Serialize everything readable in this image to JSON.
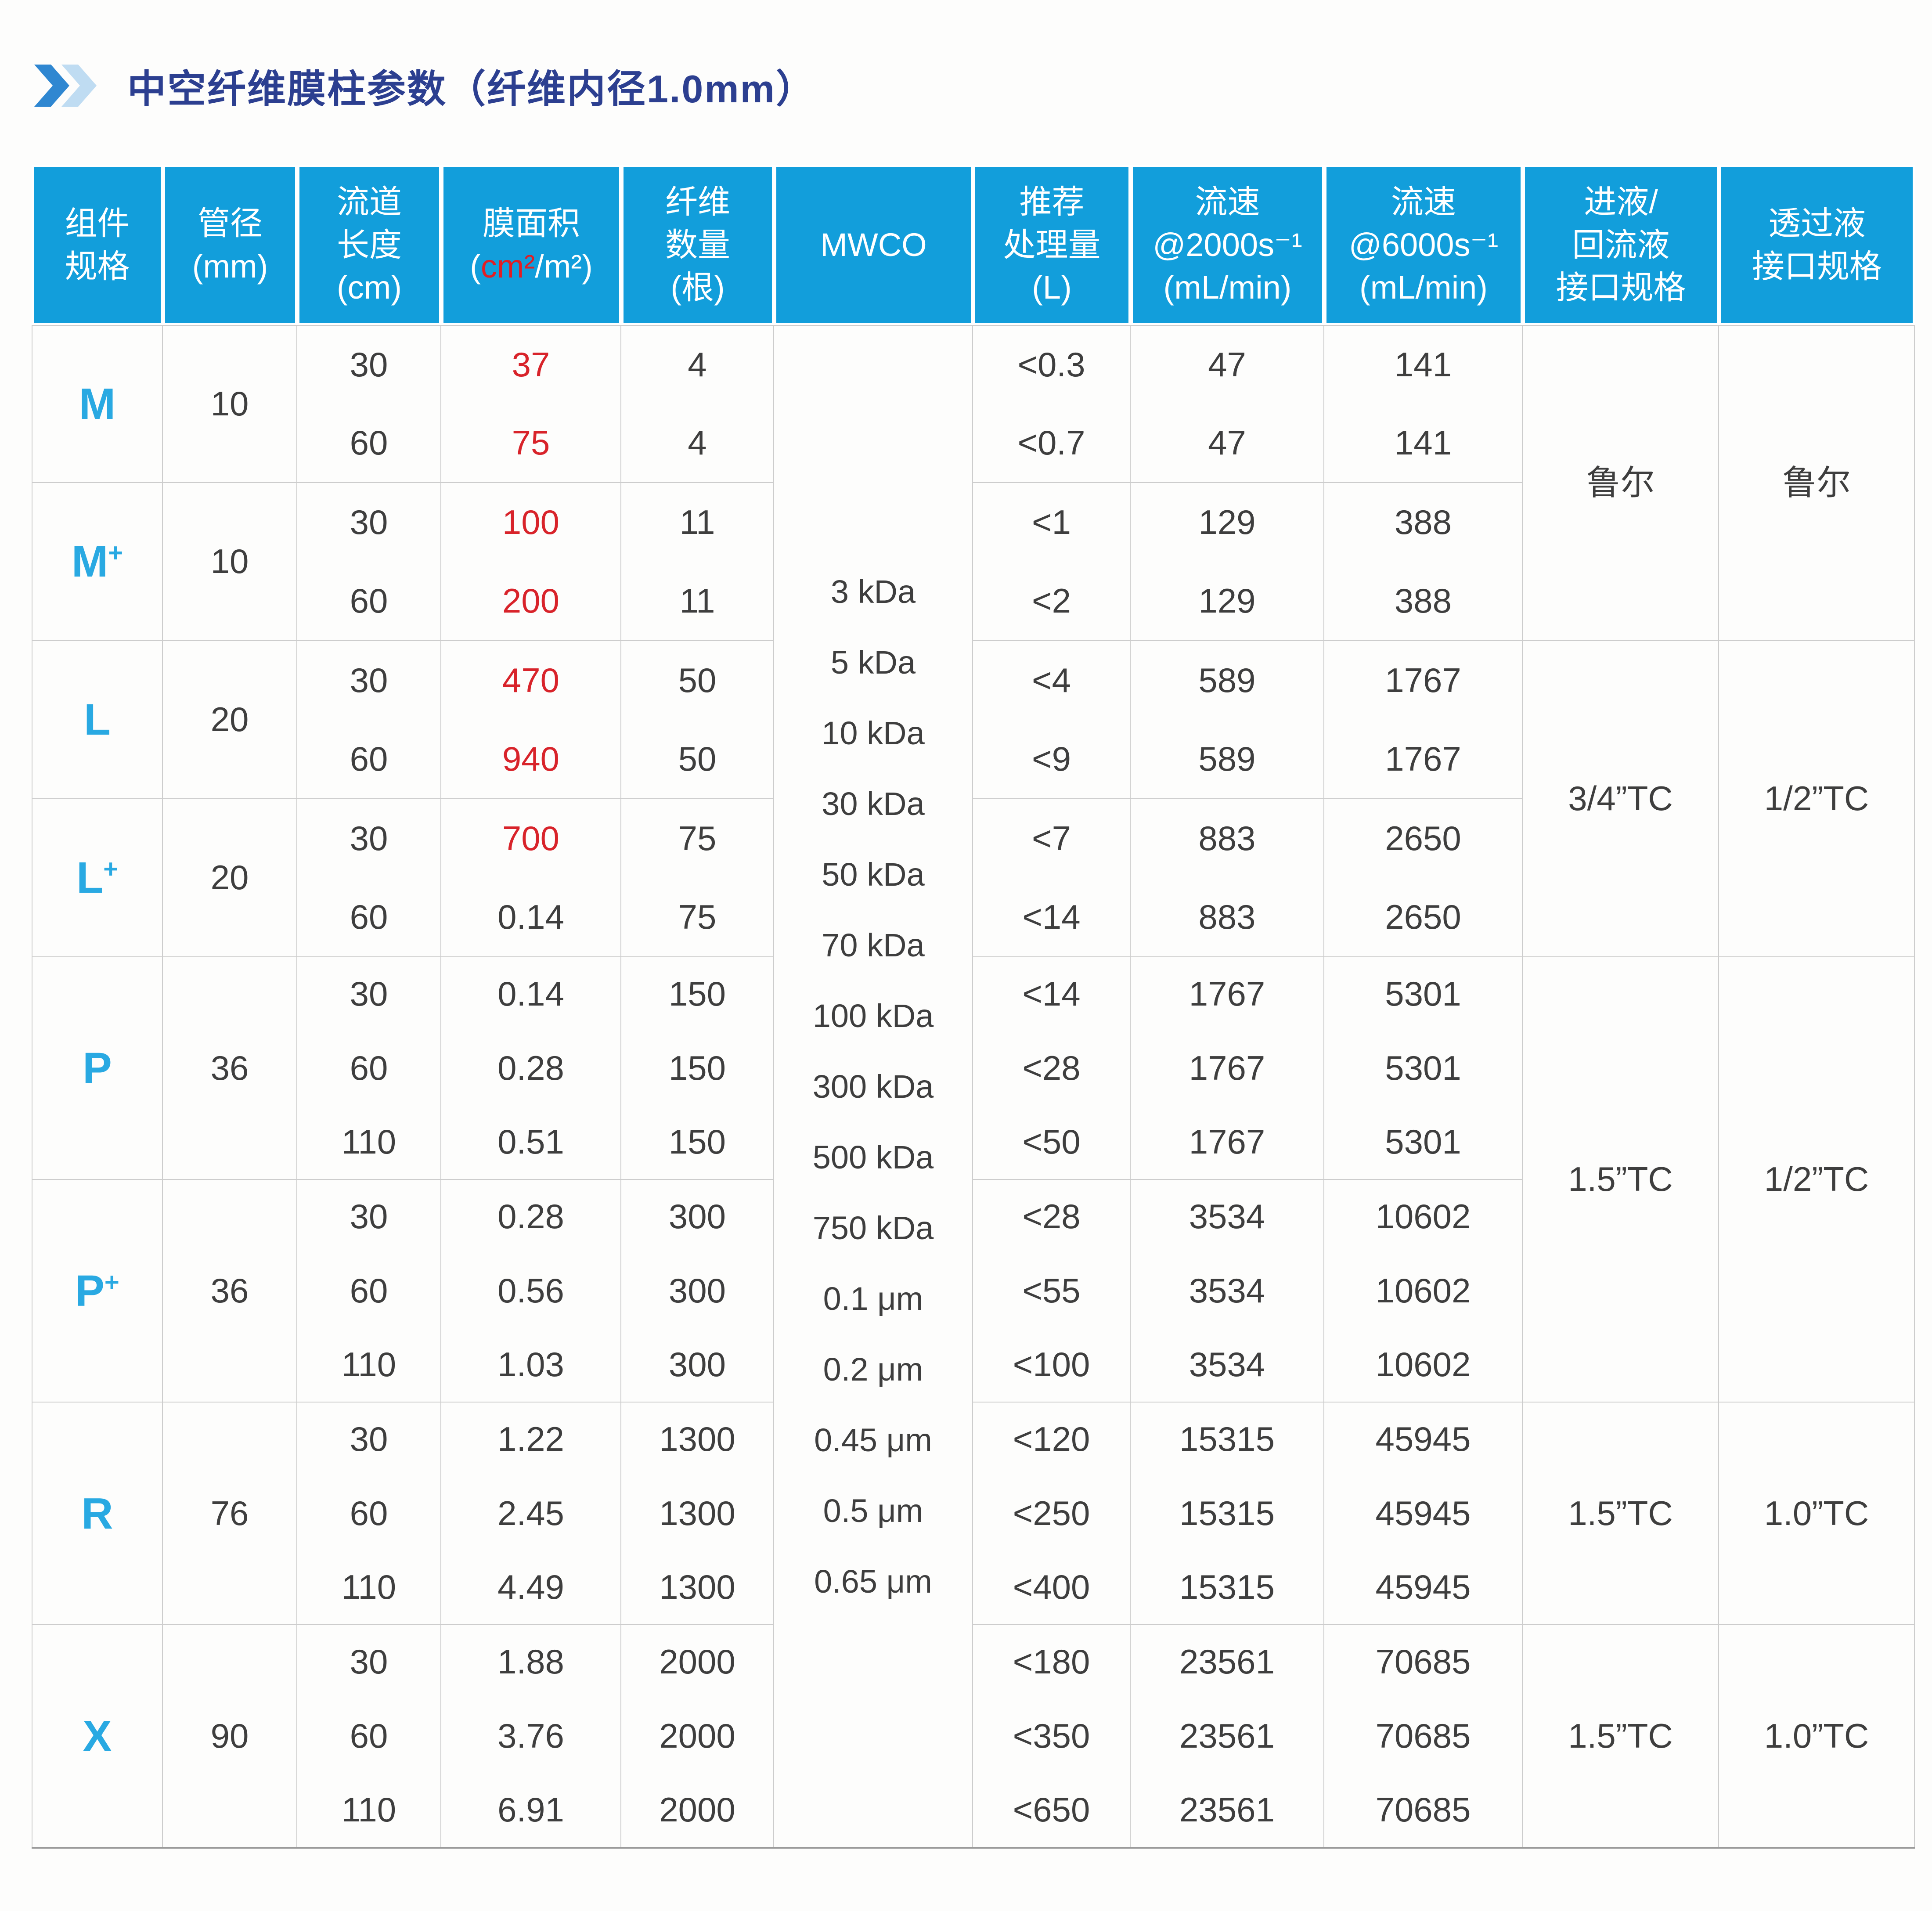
{
  "title": {
    "text": "中空纤维膜柱参数（纤维内径1.0mm）"
  },
  "icon": {
    "name": "double-chevron-right",
    "color_primary": "#2F87D1",
    "color_secondary": "#BFDCF2"
  },
  "colors": {
    "header_background": "#129EDB",
    "header_text": "#FFFFFF",
    "accent_cyan": "#29A9E2",
    "accent_red": "#D8232A",
    "title_navy": "#2C3F90",
    "body_text": "#3E3E3E",
    "grid_line": "#CDCDCD"
  },
  "table": {
    "headers": [
      {
        "lines": [
          "组件",
          "规格"
        ]
      },
      {
        "lines": [
          "管径",
          "(mm)"
        ]
      },
      {
        "lines": [
          "流道",
          "长度",
          "(cm)"
        ]
      },
      {
        "lines": [
          "膜面积"
        ],
        "unit": {
          "prefix": "(",
          "red": "cm²",
          "rest": "/m²)"
        }
      },
      {
        "lines": [
          "纤维",
          "数量",
          "(根)"
        ]
      },
      {
        "lines": [
          "MWCO"
        ]
      },
      {
        "lines": [
          "推荐",
          "处理量",
          "(L)"
        ]
      },
      {
        "lines": [
          "流速",
          "@2000s⁻¹",
          "(mL/min)"
        ]
      },
      {
        "lines": [
          "流速",
          "@6000s⁻¹",
          "(mL/min)"
        ]
      },
      {
        "lines": [
          "进液/",
          "回流液",
          "接口规格"
        ]
      },
      {
        "lines": [
          "透过液",
          "接口规格"
        ]
      }
    ],
    "mwco_list": [
      "3 kDa",
      "5 kDa",
      "10 kDa",
      "30 kDa",
      "50 kDa",
      "70 kDa",
      "100 kDa",
      "300 kDa",
      "500 kDa",
      "750 kDa",
      "0.1 μm",
      "0.2 μm",
      "0.45 μm",
      "0.5 μm",
      "0.65 μm"
    ],
    "groups": [
      {
        "spec": "M",
        "spec_sup": "",
        "diameter": "10",
        "lengths": [
          "30",
          "60"
        ],
        "areas": [
          {
            "v": "37",
            "red": true
          },
          {
            "v": "75",
            "red": true
          }
        ],
        "fibers": [
          "4",
          "4"
        ],
        "volumes": [
          "<0.3",
          "<0.7"
        ],
        "flow2000": [
          "47",
          "47"
        ],
        "flow6000": [
          "141",
          "141"
        ]
      },
      {
        "spec": "M",
        "spec_sup": "+",
        "diameter": "10",
        "lengths": [
          "30",
          "60"
        ],
        "areas": [
          {
            "v": "100",
            "red": true
          },
          {
            "v": "200",
            "red": true
          }
        ],
        "fibers": [
          "11",
          "11"
        ],
        "volumes": [
          "<1",
          "<2"
        ],
        "flow2000": [
          "129",
          "129"
        ],
        "flow6000": [
          "388",
          "388"
        ]
      },
      {
        "spec": "L",
        "spec_sup": "",
        "diameter": "20",
        "lengths": [
          "30",
          "60"
        ],
        "areas": [
          {
            "v": "470",
            "red": true
          },
          {
            "v": "940",
            "red": true
          }
        ],
        "fibers": [
          "50",
          "50"
        ],
        "volumes": [
          "<4",
          "<9"
        ],
        "flow2000": [
          "589",
          "589"
        ],
        "flow6000": [
          "1767",
          "1767"
        ]
      },
      {
        "spec": "L",
        "spec_sup": "+",
        "diameter": "20",
        "lengths": [
          "30",
          "60"
        ],
        "areas": [
          {
            "v": "700",
            "red": true
          },
          {
            "v": "0.14",
            "red": false
          }
        ],
        "fibers": [
          "75",
          "75"
        ],
        "volumes": [
          "<7",
          "<14"
        ],
        "flow2000": [
          "883",
          "883"
        ],
        "flow6000": [
          "2650",
          "2650"
        ]
      },
      {
        "spec": "P",
        "spec_sup": "",
        "diameter": "36",
        "lengths": [
          "30",
          "60",
          "110"
        ],
        "areas": [
          {
            "v": "0.14",
            "red": false
          },
          {
            "v": "0.28",
            "red": false
          },
          {
            "v": "0.51",
            "red": false
          }
        ],
        "fibers": [
          "150",
          "150",
          "150"
        ],
        "volumes": [
          "<14",
          "<28",
          "<50"
        ],
        "flow2000": [
          "1767",
          "1767",
          "1767"
        ],
        "flow6000": [
          "5301",
          "5301",
          "5301"
        ]
      },
      {
        "spec": "P",
        "spec_sup": "+",
        "diameter": "36",
        "lengths": [
          "30",
          "60",
          "110"
        ],
        "areas": [
          {
            "v": "0.28",
            "red": false
          },
          {
            "v": "0.56",
            "red": false
          },
          {
            "v": "1.03",
            "red": false
          }
        ],
        "fibers": [
          "300",
          "300",
          "300"
        ],
        "volumes": [
          "<28",
          "<55",
          "<100"
        ],
        "flow2000": [
          "3534",
          "3534",
          "3534"
        ],
        "flow6000": [
          "10602",
          "10602",
          "10602"
        ]
      },
      {
        "spec": "R",
        "spec_sup": "",
        "diameter": "76",
        "lengths": [
          "30",
          "60",
          "110"
        ],
        "areas": [
          {
            "v": "1.22",
            "red": false
          },
          {
            "v": "2.45",
            "red": false
          },
          {
            "v": "4.49",
            "red": false
          }
        ],
        "fibers": [
          "1300",
          "1300",
          "1300"
        ],
        "volumes": [
          "<120",
          "<250",
          "<400"
        ],
        "flow2000": [
          "15315",
          "15315",
          "15315"
        ],
        "flow6000": [
          "45945",
          "45945",
          "45945"
        ]
      },
      {
        "spec": "X",
        "spec_sup": "",
        "diameter": "90",
        "lengths": [
          "30",
          "60",
          "110"
        ],
        "areas": [
          {
            "v": "1.88",
            "red": false
          },
          {
            "v": "3.76",
            "red": false
          },
          {
            "v": "6.91",
            "red": false
          }
        ],
        "fibers": [
          "2000",
          "2000",
          "2000"
        ],
        "volumes": [
          "<180",
          "<350",
          "<650"
        ],
        "flow2000": [
          "23561",
          "23561",
          "23561"
        ],
        "flow6000": [
          "70685",
          "70685",
          "70685"
        ]
      }
    ],
    "interfaces": [
      {
        "inlet": "鲁尔",
        "permeate": "鲁尔"
      },
      {
        "inlet": "3/4”TC",
        "permeate": "1/2”TC"
      },
      {
        "inlet": "1.5”TC",
        "permeate": "1/2”TC"
      },
      {
        "inlet": "1.5”TC",
        "permeate": "1.0”TC"
      },
      {
        "inlet": "1.5”TC",
        "permeate": "1.0”TC"
      }
    ]
  }
}
